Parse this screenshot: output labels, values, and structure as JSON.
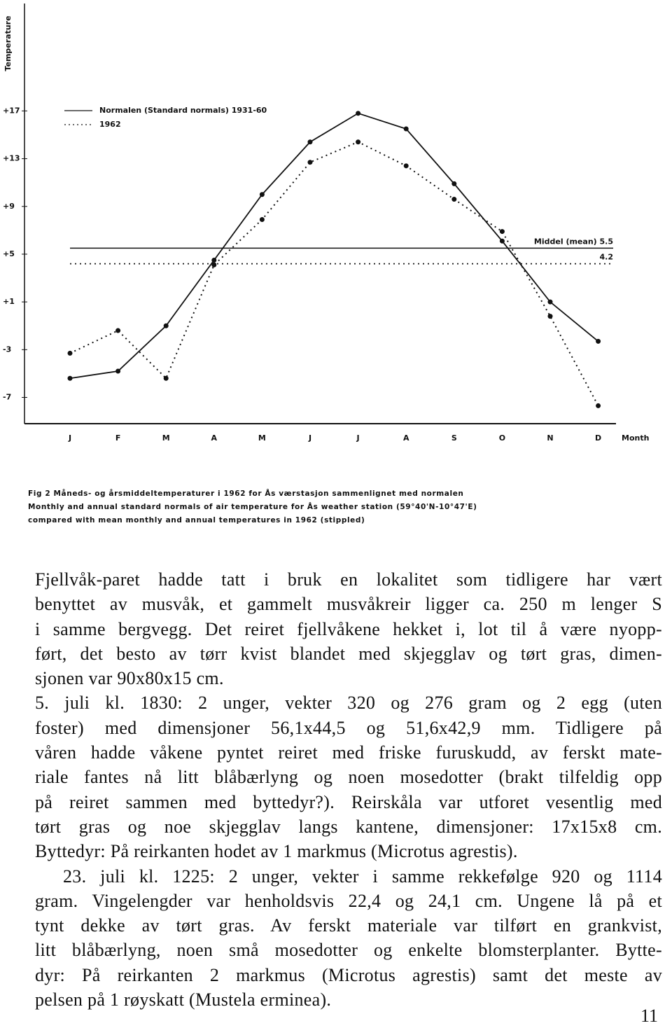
{
  "chart_data": {
    "type": "line",
    "y_label": "Temperature",
    "x_label": "Month",
    "categories": [
      "J",
      "F",
      "M",
      "A",
      "M",
      "J",
      "J",
      "A",
      "S",
      "O",
      "N",
      "D"
    ],
    "series": [
      {
        "name": "Normalen (Standard normals) 1931-60",
        "color": "#111111",
        "dash": false,
        "values": [
          -5.4,
          -4.8,
          -1.0,
          4.5,
          10.0,
          14.4,
          16.8,
          15.5,
          10.9,
          6.1,
          1.0,
          -2.3
        ]
      },
      {
        "name": "1962",
        "color": "#111111",
        "dash": true,
        "values": [
          -3.3,
          -1.4,
          -5.4,
          4.1,
          7.9,
          12.7,
          14.4,
          12.4,
          9.6,
          6.9,
          -0.2,
          -7.7
        ]
      }
    ],
    "mean_lines": [
      {
        "label": "Middel (mean) 5.5",
        "value": 5.5,
        "series": 0
      },
      {
        "label": "4.2",
        "value": 4.2,
        "series": 1
      }
    ],
    "ylim": [
      -9.2,
      26
    ],
    "yticks": [
      {
        "value": 17,
        "label": "+17"
      },
      {
        "value": 13,
        "label": "+13"
      },
      {
        "value": 9,
        "label": "+9"
      },
      {
        "value": 5,
        "label": "+5"
      },
      {
        "value": 1,
        "label": "+1"
      },
      -3,
      -7
    ],
    "grid": false
  },
  "caption": {
    "lines": [
      "Fig 2  Måneds- og årsmiddeltemperaturer i 1962 for Ås værstasjon sammenlignet med normalen",
      "Monthly and annual standard normals of air temperature for Ås weather station (59°40'N-10°47'E)",
      "compared with mean monthly and annual temperatures in 1962 (stippled)"
    ]
  },
  "body": {
    "paragraphs": [
      {
        "lines": [
          "Fjellvåk-paret hadde tatt i bruk en lokalitet som tidligere har vært",
          "benyttet av musvåk, et gammelt musvåkreir ligger ca. 250 m lenger S",
          "i samme bergvegg. Det reiret fjellvåkene hekket i, lot til å være nyopp-",
          "ført, det besto av tørr kvist blandet med skjegglav og tørt gras, dimen-",
          "sjonen var 90x80x15 cm."
        ]
      },
      {
        "lines": [
          "5. juli kl. 1830:  2 unger, vekter 320 og 276 gram og 2 egg (uten",
          "foster) med dimensjoner 56,1x44,5 og 51,6x42,9 mm. Tidligere på",
          "våren hadde våkene pyntet reiret med friske furuskudd, av ferskt mate-",
          "riale fantes nå litt blåbærlyng og noen mosedotter (brakt tilfeldig opp",
          "på reiret sammen med byttedyr?). Reirskåla var utforet vesentlig med",
          "tørt gras og noe skjegglav langs kantene, dimensjoner: 17x15x8 cm.",
          "Byttedyr: På reirkanten hodet av 1 markmus (Microtus agrestis)."
        ]
      },
      {
        "lines": [
          "23. juli kl. 1225:  2 unger, vekter i samme rekkefølge 920 og 1114",
          "gram. Vingelengder var henholdsvis 22,4 og 24,1 cm. Ungene lå på et",
          "tynt dekke av tørt gras. Av ferskt materiale var tilført en grankvist,",
          "litt blåbærlyng, noen små mosedotter og enkelte blomsterplanter. Bytte-",
          "dyr: På reirkanten 2 markmus (Microtus agrestis) samt det meste av",
          "pelsen på 1 røyskatt (Mustela erminea)."
        ]
      }
    ]
  },
  "page_number": "11"
}
